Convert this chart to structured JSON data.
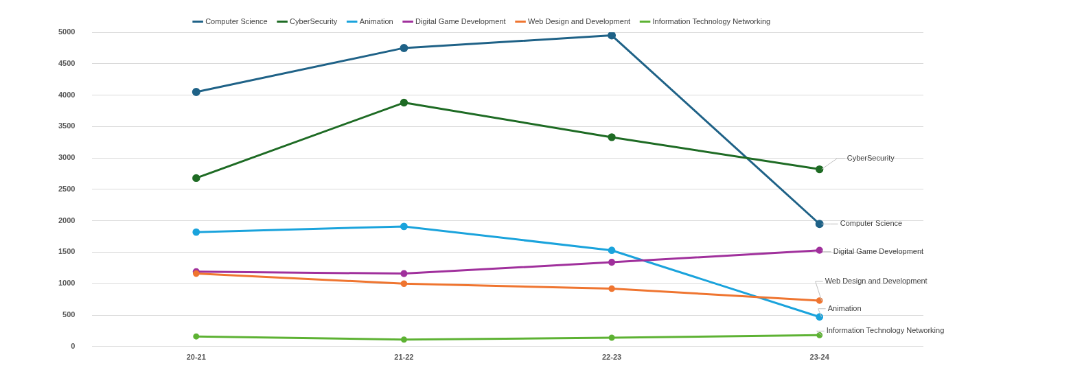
{
  "chart_data": {
    "type": "line",
    "categories": [
      "20-21",
      "21-22",
      "22-23",
      "23-24"
    ],
    "ylim": [
      0,
      5000
    ],
    "yticks": [
      0,
      500,
      1000,
      1500,
      2000,
      2500,
      3000,
      3500,
      4000,
      4500,
      5000
    ],
    "grid": "y",
    "legend": "top",
    "marker": "circle",
    "line_style": "solid",
    "series": [
      {
        "name": "Computer Science",
        "color": "#1f6287",
        "values": [
          4050,
          4750,
          4950,
          1950
        ]
      },
      {
        "name": "CyberSecurity",
        "color": "#1e6b24",
        "values": [
          2680,
          3880,
          3330,
          2820
        ]
      },
      {
        "name": "Animation",
        "color": "#1aa3dc",
        "values": [
          1820,
          1910,
          1530,
          470
        ]
      },
      {
        "name": "Digital Game Development",
        "color": "#a0309c",
        "values": [
          1190,
          1160,
          1340,
          1530
        ]
      },
      {
        "name": "Web Design and Development",
        "color": "#ef7530",
        "values": [
          1160,
          1000,
          920,
          730
        ]
      },
      {
        "name": "Information Technology Networking",
        "color": "#5db233",
        "values": [
          160,
          110,
          140,
          180
        ]
      }
    ]
  }
}
